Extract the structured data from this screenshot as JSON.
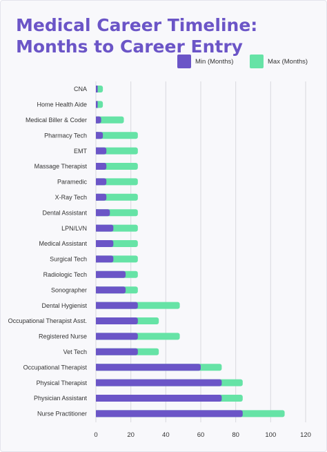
{
  "title": "Medical Career Timeline: Months to Career Entry",
  "colors": {
    "min": "#6b55c7",
    "max": "#66e3a6",
    "title": "#6b55c7"
  },
  "chart_data": {
    "type": "bar",
    "orientation": "horizontal",
    "stacked": "overlay",
    "title": "Medical Career Timeline: Months to Career Entry",
    "xlabel": "",
    "ylabel": "",
    "xlim": [
      0,
      120
    ],
    "xticks": [
      0,
      20,
      40,
      60,
      80,
      100,
      120
    ],
    "grid": true,
    "legend_position": "top-right",
    "categories": [
      "CNA",
      "Home Health Aide",
      "Medical Biller & Coder",
      "Pharmacy Tech",
      "EMT",
      "Massage Therapist",
      "Paramedic",
      "X-Ray Tech",
      "Dental Assistant",
      "LPN/LVN",
      "Medical Assistant",
      "Surgical Tech",
      "Radiologic Tech",
      "Sonographer",
      "Dental Hygienist",
      "Occupational Therapist Asst.",
      "Registered Nurse",
      "Vet Tech",
      "Occupational Therapist",
      "Physical Therapist",
      "Physician Assistant",
      "Nurse Practitioner"
    ],
    "series": [
      {
        "name": "Min (Months)",
        "values": [
          1,
          1,
          3,
          4,
          6,
          6,
          6,
          6,
          8,
          10,
          10,
          10,
          17,
          17,
          24,
          24,
          24,
          24,
          60,
          72,
          72,
          84
        ]
      },
      {
        "name": "Max (Months)",
        "values": [
          4,
          4,
          16,
          24,
          24,
          24,
          24,
          24,
          24,
          24,
          24,
          24,
          24,
          24,
          48,
          36,
          48,
          36,
          72,
          84,
          84,
          108
        ]
      }
    ]
  }
}
